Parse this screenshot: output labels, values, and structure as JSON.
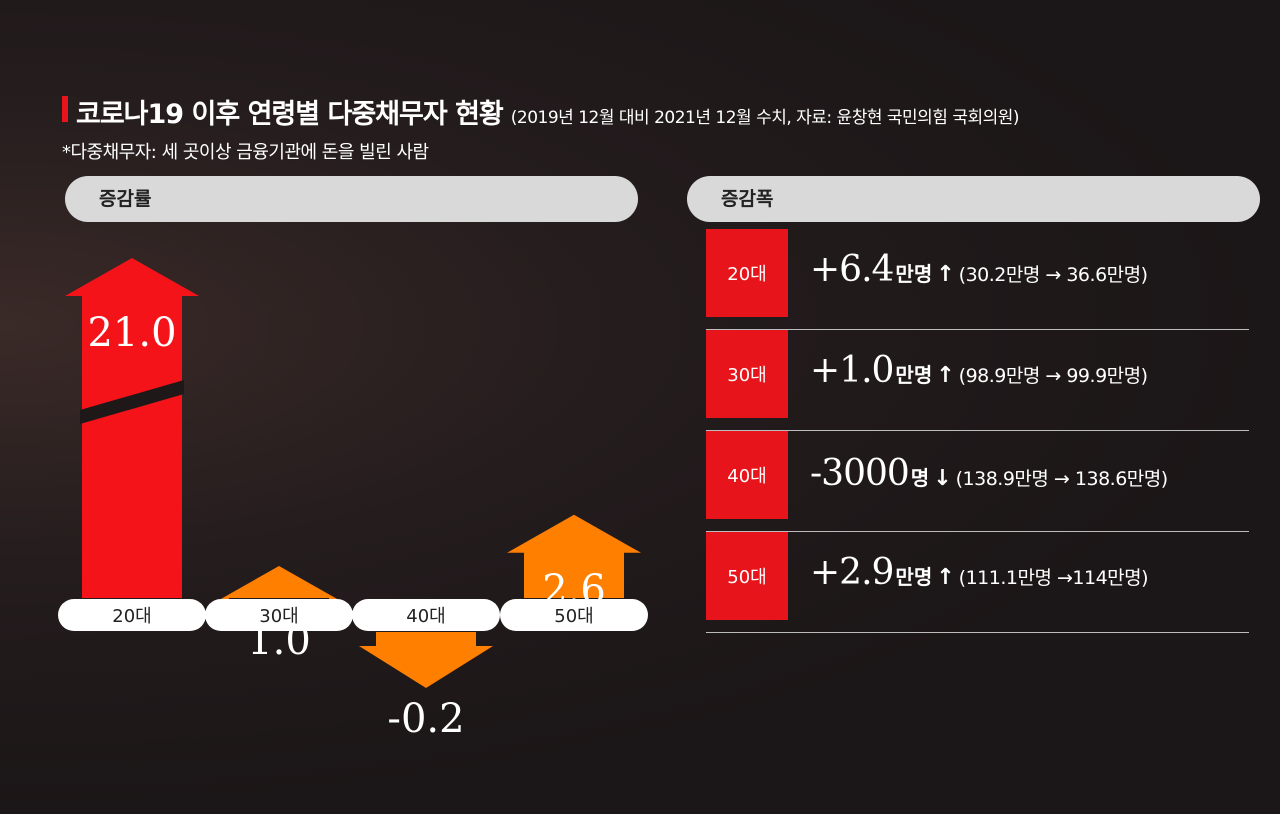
{
  "header": {
    "title": "코로나19 이후 연령별 다중채무자 현황",
    "subtitle": "(2019년 12월 대비 2021년 12월 수치, 자료: 윤창현 국민의힘 국회의원)",
    "note": "*다중채무자: 세 곳이상 금융기관에 돈을 빌린 사람"
  },
  "left_panel": {
    "label": "증감률"
  },
  "right_panel": {
    "label": "증감폭"
  },
  "chart_data": {
    "type": "bar",
    "title": "증감률",
    "categories": [
      "20대",
      "30대",
      "40대",
      "50대"
    ],
    "values": [
      21.0,
      1.0,
      -0.2,
      2.6
    ],
    "value_labels": [
      "21.0",
      "1.0",
      "-0.2",
      "2.6"
    ],
    "colors": [
      "#f5131a",
      "#ff7f00",
      "#ff7f00",
      "#ff7f00"
    ],
    "axis_break_on": "20대"
  },
  "rows": [
    {
      "age": "20대",
      "change": "+6.4",
      "unit": "만명",
      "arrow": "↑",
      "range": "(30.2만명 → 36.6만명)"
    },
    {
      "age": "30대",
      "change": "+1.0",
      "unit": "만명",
      "arrow": "↑",
      "range": "(98.9만명 → 99.9만명)"
    },
    {
      "age": "40대",
      "change": "-3000",
      "unit": "명",
      "arrow": "↓",
      "range": "(138.9만명 → 138.6만명)"
    },
    {
      "age": "50대",
      "change": "+2.9",
      "unit": "만명",
      "arrow": "↑",
      "range": "(111.1만명 →114만명)"
    }
  ],
  "colors": {
    "red": "#e8141b",
    "orange": "#ff7f00",
    "background": "#1b1617"
  }
}
